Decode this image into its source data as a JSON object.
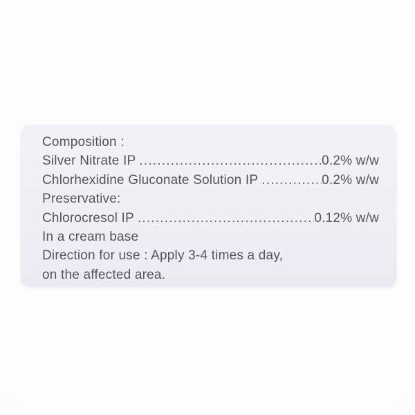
{
  "page": {
    "background_color": "#fcfcfc",
    "card_color": "#edf0f5",
    "text_color": "#53545c"
  },
  "label": {
    "composition_heading": "Composition :",
    "ingredients": [
      {
        "name": "Silver Nitrate IP",
        "value": "0.2% w/w"
      },
      {
        "name": "Chlorhexidine Gluconate Solution IP",
        "value": "0.2% w/w"
      }
    ],
    "preservative_heading": "Preservative:",
    "preservative": {
      "name": "Chlorocresol IP",
      "value": "0.12% w/w"
    },
    "base_note": "In a cream base",
    "direction_line1": "Direction for use : Apply 3-4 times a day,",
    "direction_line2": "on the affected area.",
    "leader_dots": "......................................................................................................................................"
  }
}
